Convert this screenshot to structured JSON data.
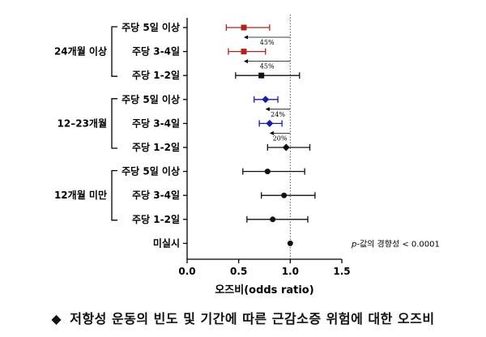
{
  "chart_data": {
    "type": "forest",
    "xlabel": "오즈비(odds ratio)",
    "xlim": [
      0,
      1.5
    ],
    "xticks": [
      "0.0",
      "0.5",
      "1.0",
      "1.5"
    ],
    "reference_line": 1.0,
    "groups": [
      {
        "label": "24개월 이상",
        "rows": [
          0,
          1,
          2
        ]
      },
      {
        "label": "12–23개월",
        "rows": [
          3,
          4,
          5
        ]
      },
      {
        "label": "12개월 미만",
        "rows": [
          6,
          7,
          8
        ]
      }
    ],
    "rows": [
      {
        "label": "주당 5일 이상",
        "or": 0.55,
        "low": 0.38,
        "high": 0.8,
        "color": "#b41f1f",
        "marker": "square",
        "reduction": "45%"
      },
      {
        "label": "주당 3-4일",
        "or": 0.55,
        "low": 0.4,
        "high": 0.76,
        "color": "#b41f1f",
        "marker": "square",
        "reduction": "45%"
      },
      {
        "label": "주당 1-2일",
        "or": 0.72,
        "low": 0.47,
        "high": 1.09,
        "color": "#111111",
        "marker": "square",
        "reduction": ""
      },
      {
        "label": "주당 5일 이상",
        "or": 0.76,
        "low": 0.65,
        "high": 0.88,
        "color": "#1a1aa6",
        "marker": "diamond",
        "reduction": "24%"
      },
      {
        "label": "주당 3-4일",
        "or": 0.8,
        "low": 0.7,
        "high": 0.92,
        "color": "#1a1aa6",
        "marker": "diamond",
        "reduction": "20%"
      },
      {
        "label": "주당 1-2일",
        "or": 0.96,
        "low": 0.78,
        "high": 1.19,
        "color": "#111111",
        "marker": "diamond",
        "reduction": ""
      },
      {
        "label": "주당 5일 이상",
        "or": 0.78,
        "low": 0.54,
        "high": 1.14,
        "color": "#111111",
        "marker": "circle",
        "reduction": ""
      },
      {
        "label": "주당 3-4일",
        "or": 0.94,
        "low": 0.72,
        "high": 1.24,
        "color": "#111111",
        "marker": "circle",
        "reduction": ""
      },
      {
        "label": "주당 1-2일",
        "or": 0.83,
        "low": 0.58,
        "high": 1.17,
        "color": "#111111",
        "marker": "circle",
        "reduction": ""
      },
      {
        "label": "미실시",
        "or": 1.0,
        "low": null,
        "high": null,
        "color": "#111111",
        "marker": "circle",
        "reduction": ""
      }
    ],
    "annotation": "p-값의 경향성 < 0.0001"
  },
  "caption": {
    "symbol": "◆",
    "text": "저항성 운동의 빈도 및 기간에 따른 근감소증 위험에 대한 오즈비"
  }
}
